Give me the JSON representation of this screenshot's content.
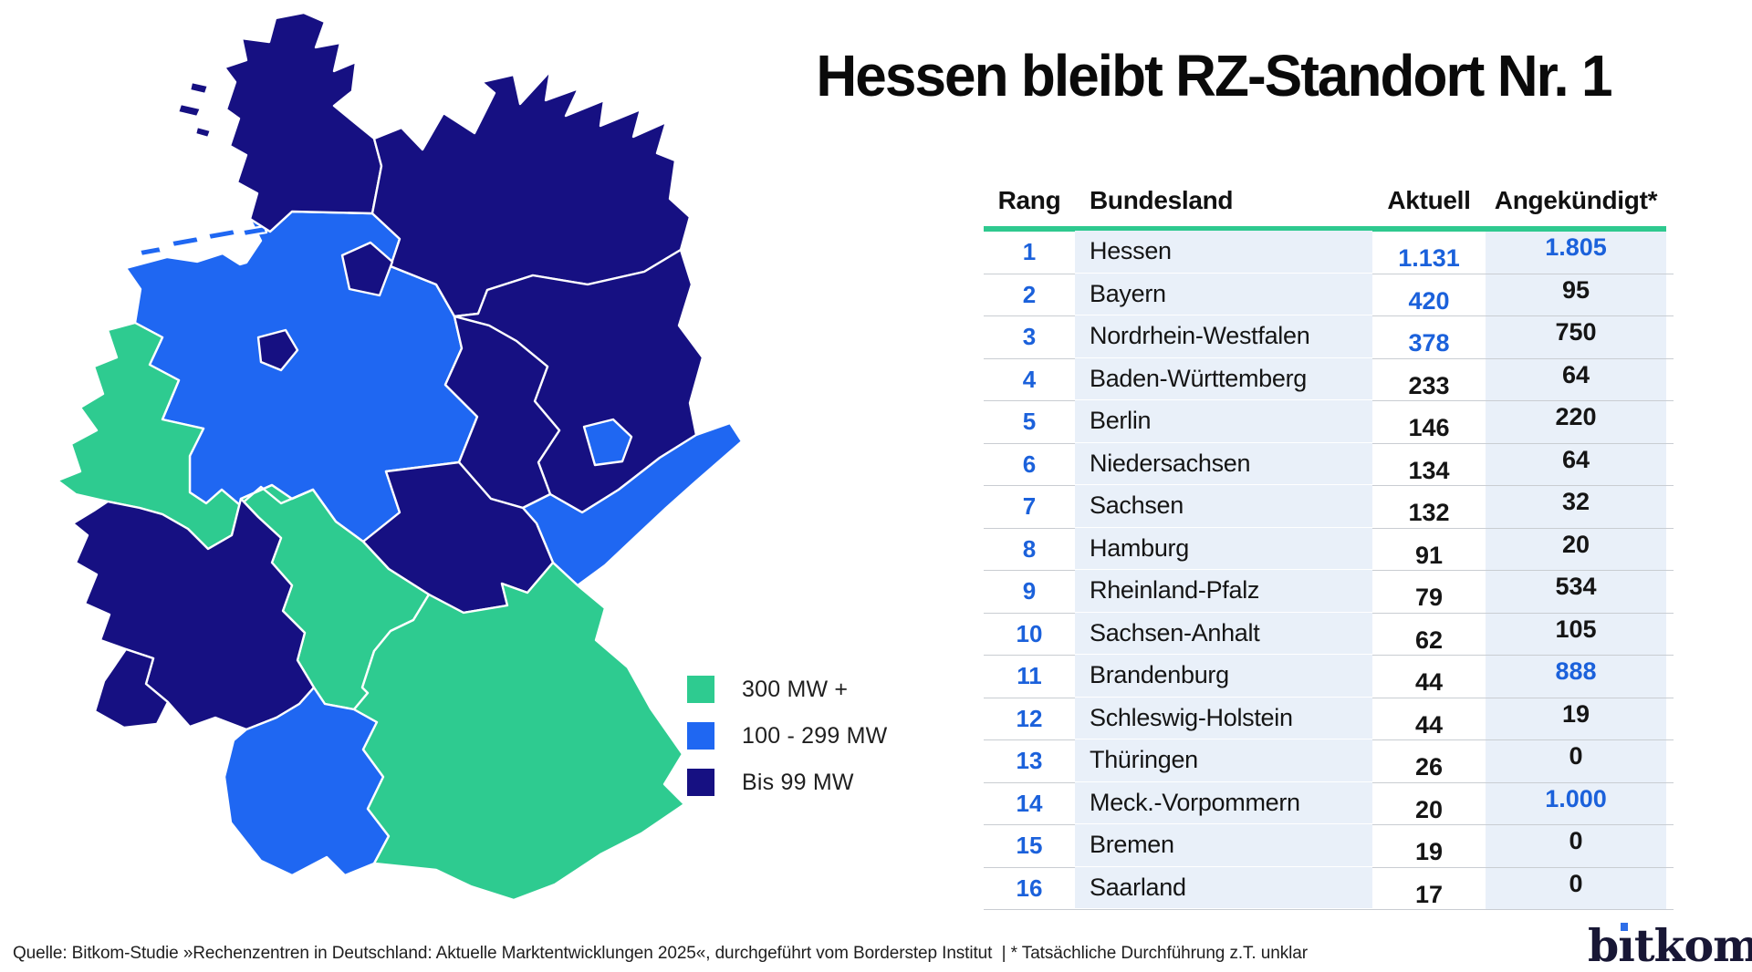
{
  "title": "Hessen bleibt RZ-Standort Nr. 1",
  "colors": {
    "green": "#2ECB90",
    "blue": "#1F67F2",
    "navy": "#161082",
    "table_header_rule": "#2EC98F",
    "cell_bg": "#E9F0F9",
    "blue_text": "#1B61DB",
    "row_line": "#C9CDD2",
    "logo_navy": "#181735",
    "logo_dot_blue": "#2E6EE8"
  },
  "legend": {
    "items": [
      {
        "label": "300 MW +",
        "category": "green"
      },
      {
        "label": "100 - 299 MW",
        "category": "blue"
      },
      {
        "label": "Bis 99 MW",
        "category": "navy"
      }
    ]
  },
  "table": {
    "columns": {
      "rank": "Rang",
      "state": "Bundesland",
      "current": "Aktuell",
      "announced": "Angekündigt*"
    },
    "rows": [
      {
        "rank": "1",
        "state": "Hessen",
        "current": "1.131",
        "announced": "1.805",
        "current_blue": true,
        "announced_blue": true
      },
      {
        "rank": "2",
        "state": "Bayern",
        "current": "420",
        "announced": "95",
        "current_blue": true,
        "announced_blue": false
      },
      {
        "rank": "3",
        "state": "Nordrhein-Westfalen",
        "current": "378",
        "announced": "750",
        "current_blue": true,
        "announced_blue": false
      },
      {
        "rank": "4",
        "state": "Baden-Württemberg",
        "current": "233",
        "announced": "64",
        "current_blue": false,
        "announced_blue": false
      },
      {
        "rank": "5",
        "state": "Berlin",
        "current": "146",
        "announced": "220",
        "current_blue": false,
        "announced_blue": false
      },
      {
        "rank": "6",
        "state": "Niedersachsen",
        "current": "134",
        "announced": "64",
        "current_blue": false,
        "announced_blue": false
      },
      {
        "rank": "7",
        "state": "Sachsen",
        "current": "132",
        "announced": "32",
        "current_blue": false,
        "announced_blue": false
      },
      {
        "rank": "8",
        "state": "Hamburg",
        "current": "91",
        "announced": "20",
        "current_blue": false,
        "announced_blue": false
      },
      {
        "rank": "9",
        "state": "Rheinland-Pfalz",
        "current": "79",
        "announced": "534",
        "current_blue": false,
        "announced_blue": false
      },
      {
        "rank": "10",
        "state": "Sachsen-Anhalt",
        "current": "62",
        "announced": "105",
        "current_blue": false,
        "announced_blue": false
      },
      {
        "rank": "11",
        "state": "Brandenburg",
        "current": "44",
        "announced": "888",
        "current_blue": false,
        "announced_blue": true
      },
      {
        "rank": "12",
        "state": "Schleswig-Holstein",
        "current": "44",
        "announced": "19",
        "current_blue": false,
        "announced_blue": false
      },
      {
        "rank": "13",
        "state": "Thüringen",
        "current": "26",
        "announced": "0",
        "current_blue": false,
        "announced_blue": false
      },
      {
        "rank": "14",
        "state": "Meck.-Vorpommern",
        "current": "20",
        "announced": "1.000",
        "current_blue": false,
        "announced_blue": true
      },
      {
        "rank": "15",
        "state": "Bremen",
        "current": "19",
        "announced": "0",
        "current_blue": false,
        "announced_blue": false
      },
      {
        "rank": "16",
        "state": "Saarland",
        "current": "17",
        "announced": "0",
        "current_blue": false,
        "announced_blue": false
      }
    ]
  },
  "map": {
    "legend_note": "choropleth of German states by data center capacity class",
    "states": {
      "schleswig-holstein": "navy",
      "north-frisian-islands": "navy",
      "mecklenburg-vorpommern": "navy",
      "niedersachsen": "blue",
      "east-frisian-islands": "blue",
      "brandenburg": "navy",
      "sachsen-anhalt": "navy",
      "sachsen": "blue",
      "thueringen": "navy",
      "hessen": "green",
      "nordrhein-westfalen": "green",
      "rheinland-pfalz": "navy",
      "saarland": "navy",
      "baden-wuerttemberg": "blue",
      "bayern": "green",
      "hamburg": "navy",
      "bremen": "navy",
      "berlin": "blue"
    }
  },
  "chart_data": {
    "type": "table",
    "title": "Hessen bleibt RZ-Standort Nr. 1",
    "columns": [
      "Rang",
      "Bundesland",
      "Aktuell",
      "Angekündigt*"
    ],
    "categories": [
      "Hessen",
      "Bayern",
      "Nordrhein-Westfalen",
      "Baden-Württemberg",
      "Berlin",
      "Niedersachsen",
      "Sachsen",
      "Hamburg",
      "Rheinland-Pfalz",
      "Sachsen-Anhalt",
      "Brandenburg",
      "Schleswig-Holstein",
      "Thüringen",
      "Meck.-Vorpommern",
      "Bremen",
      "Saarland"
    ],
    "series": [
      {
        "name": "Aktuell",
        "values": [
          1131,
          420,
          378,
          233,
          146,
          134,
          132,
          91,
          79,
          62,
          44,
          44,
          26,
          20,
          19,
          17
        ]
      },
      {
        "name": "Angekündigt",
        "values": [
          1805,
          95,
          750,
          64,
          220,
          64,
          32,
          20,
          534,
          105,
          888,
          19,
          0,
          1000,
          0,
          0
        ]
      }
    ],
    "map_classes": {
      "300 MW +": [
        "Hessen",
        "Bayern",
        "Nordrhein-Westfalen"
      ],
      "100 - 299 MW": [
        "Baden-Württemberg",
        "Berlin",
        "Niedersachsen",
        "Sachsen"
      ],
      "Bis 99 MW": [
        "Sachsen-Anhalt",
        "Brandenburg",
        "Schleswig-Holstein",
        "Thüringen",
        "Meck.-Vorpommern",
        "Bremen",
        "Saarland",
        "Hamburg",
        "Rheinland-Pfalz"
      ]
    }
  },
  "footer": {
    "source": "Quelle: Bitkom-Studie »Rechenzentren in Deutschland: Aktuelle Marktentwicklungen 2025«, durchgeführt vom Borderstep Institut  | * Tatsächliche Durchführung z.T. unklar",
    "logo_text": "bitkom"
  }
}
